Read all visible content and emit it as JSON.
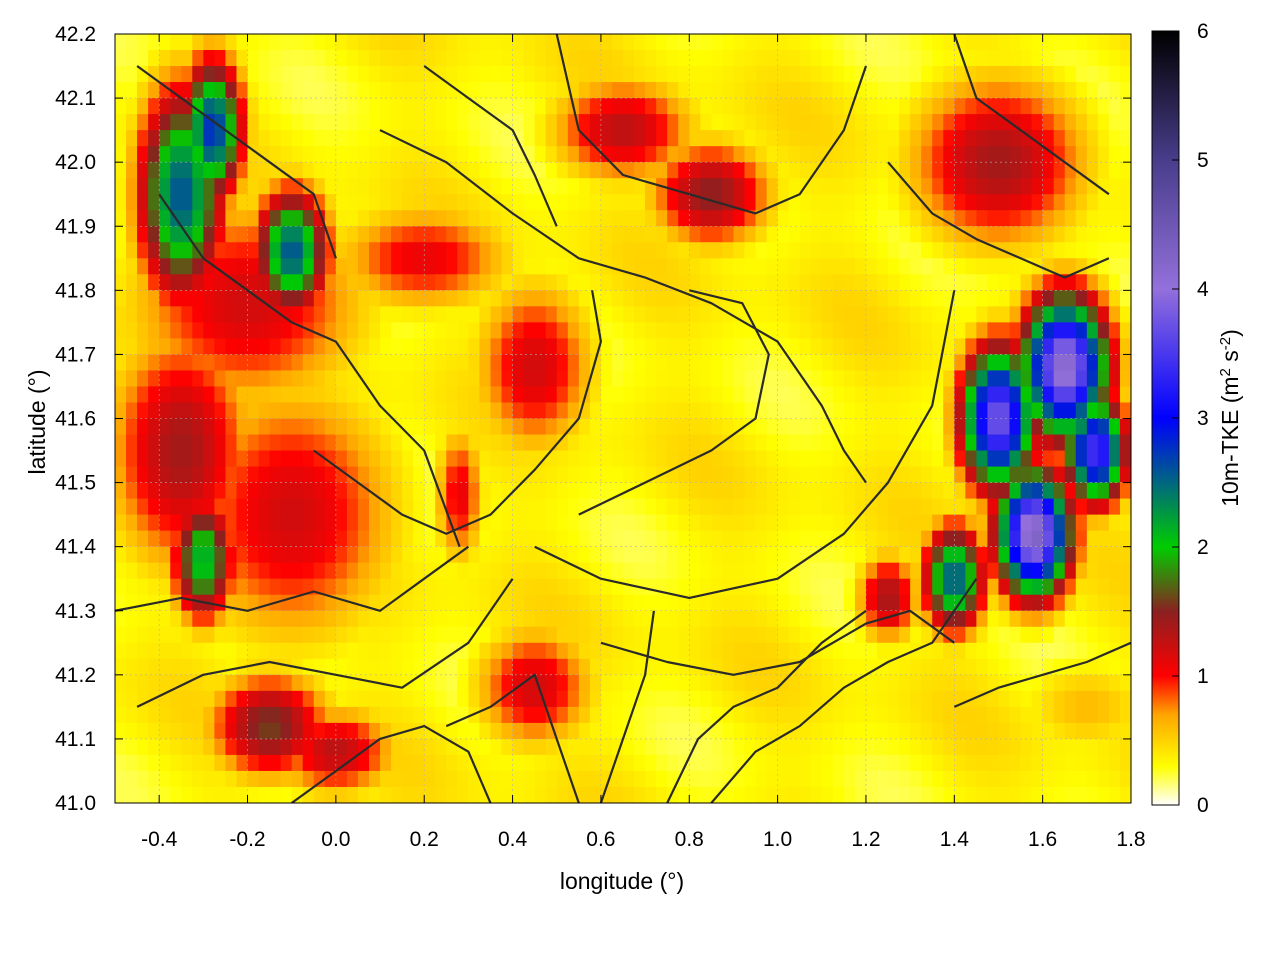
{
  "chart_data": {
    "type": "heatmap",
    "title": "",
    "xlabel": "longitude (°)",
    "ylabel": "latitude (°)",
    "colorbar_label": "10m-TKE (m² s⁻²)",
    "colorbar_label_parts": {
      "base": "10m-TKE (m",
      "sup1": "2",
      "mid": " s",
      "sup2": "-2",
      "end": ")"
    },
    "xlim": [
      -0.5,
      1.8
    ],
    "ylim": [
      41.0,
      42.2
    ],
    "clim": [
      0,
      6
    ],
    "xticks": [
      "-0.4",
      "-0.2",
      "0.0",
      "0.2",
      "0.4",
      "0.6",
      "0.8",
      "1.0",
      "1.2",
      "1.4",
      "1.6",
      "1.8"
    ],
    "xtick_values": [
      -0.4,
      -0.2,
      0.0,
      0.2,
      0.4,
      0.6,
      0.8,
      1.0,
      1.2,
      1.4,
      1.6,
      1.8
    ],
    "yticks": [
      "41.0",
      "41.1",
      "41.2",
      "41.3",
      "41.4",
      "41.5",
      "41.6",
      "41.7",
      "41.8",
      "41.9",
      "42.0",
      "42.1",
      "42.2"
    ],
    "ytick_values": [
      41.0,
      41.1,
      41.2,
      41.3,
      41.4,
      41.5,
      41.6,
      41.7,
      41.8,
      41.9,
      42.0,
      42.1,
      42.2
    ],
    "cbticks": [
      "0",
      "1",
      "2",
      "3",
      "4",
      "5",
      "6"
    ],
    "cbtick_values": [
      0,
      1,
      2,
      3,
      4,
      5,
      6
    ],
    "grid": true,
    "colormap": [
      {
        "v": 0.0,
        "color": "#ffffff"
      },
      {
        "v": 0.3,
        "color": "#ffff00"
      },
      {
        "v": 0.7,
        "color": "#ffa500"
      },
      {
        "v": 1.0,
        "color": "#ff0000"
      },
      {
        "v": 1.5,
        "color": "#8b2020"
      },
      {
        "v": 2.0,
        "color": "#00cc00"
      },
      {
        "v": 3.0,
        "color": "#0000ff"
      },
      {
        "v": 4.0,
        "color": "#9370db"
      },
      {
        "v": 5.0,
        "color": "#483d8b"
      },
      {
        "v": 6.0,
        "color": "#000000"
      }
    ],
    "field_blobs": [
      {
        "lon": -0.35,
        "lat": 41.95,
        "v": 2.6,
        "sx": 0.07,
        "sy": 0.12
      },
      {
        "lon": -0.28,
        "lat": 42.05,
        "v": 2.8,
        "sx": 0.05,
        "sy": 0.08
      },
      {
        "lon": -0.1,
        "lat": 41.86,
        "v": 2.6,
        "sx": 0.06,
        "sy": 0.07
      },
      {
        "lon": -0.2,
        "lat": 41.78,
        "v": 1.2,
        "sx": 0.2,
        "sy": 0.12
      },
      {
        "lon": -0.35,
        "lat": 41.55,
        "v": 1.4,
        "sx": 0.12,
        "sy": 0.14
      },
      {
        "lon": -0.3,
        "lat": 41.38,
        "v": 2.2,
        "sx": 0.05,
        "sy": 0.07
      },
      {
        "lon": -0.1,
        "lat": 41.45,
        "v": 1.2,
        "sx": 0.18,
        "sy": 0.15
      },
      {
        "lon": 0.45,
        "lat": 41.68,
        "v": 1.2,
        "sx": 0.1,
        "sy": 0.1
      },
      {
        "lon": 0.2,
        "lat": 41.85,
        "v": 1.1,
        "sx": 0.15,
        "sy": 0.06
      },
      {
        "lon": 0.28,
        "lat": 41.48,
        "v": 1.1,
        "sx": 0.04,
        "sy": 0.08
      },
      {
        "lon": 0.45,
        "lat": 41.18,
        "v": 1.2,
        "sx": 0.1,
        "sy": 0.07
      },
      {
        "lon": -0.15,
        "lat": 41.12,
        "v": 1.6,
        "sx": 0.1,
        "sy": 0.06
      },
      {
        "lon": 0.0,
        "lat": 41.08,
        "v": 1.3,
        "sx": 0.1,
        "sy": 0.05
      },
      {
        "lon": 0.65,
        "lat": 42.05,
        "v": 1.3,
        "sx": 0.12,
        "sy": 0.06
      },
      {
        "lon": 0.85,
        "lat": 41.95,
        "v": 1.5,
        "sx": 0.1,
        "sy": 0.06
      },
      {
        "lon": 1.5,
        "lat": 42.0,
        "v": 1.4,
        "sx": 0.15,
        "sy": 0.1
      },
      {
        "lon": 1.65,
        "lat": 41.68,
        "v": 4.2,
        "sx": 0.07,
        "sy": 0.08
      },
      {
        "lon": 1.5,
        "lat": 41.6,
        "v": 3.8,
        "sx": 0.06,
        "sy": 0.08
      },
      {
        "lon": 1.58,
        "lat": 41.42,
        "v": 4.3,
        "sx": 0.06,
        "sy": 0.07
      },
      {
        "lon": 1.72,
        "lat": 41.55,
        "v": 3.5,
        "sx": 0.05,
        "sy": 0.06
      },
      {
        "lon": 1.4,
        "lat": 41.35,
        "v": 2.6,
        "sx": 0.05,
        "sy": 0.06
      },
      {
        "lon": 1.25,
        "lat": 41.32,
        "v": 1.4,
        "sx": 0.05,
        "sy": 0.05
      },
      {
        "lon": 1.7,
        "lat": 41.15,
        "v": 0.6,
        "sx": 0.12,
        "sy": 0.06
      }
    ],
    "contours": [
      [
        [
          -0.5,
          41.3
        ],
        [
          -0.35,
          41.32
        ],
        [
          -0.2,
          41.3
        ],
        [
          -0.05,
          41.33
        ],
        [
          0.1,
          41.3
        ],
        [
          0.2,
          41.35
        ],
        [
          0.3,
          41.4
        ]
      ],
      [
        [
          -0.45,
          41.15
        ],
        [
          -0.3,
          41.2
        ],
        [
          -0.15,
          41.22
        ],
        [
          0.0,
          41.2
        ],
        [
          0.15,
          41.18
        ],
        [
          0.3,
          41.25
        ],
        [
          0.4,
          41.35
        ]
      ],
      [
        [
          -0.4,
          41.95
        ],
        [
          -0.3,
          41.85
        ],
        [
          -0.2,
          41.8
        ],
        [
          -0.1,
          41.75
        ],
        [
          0.0,
          41.72
        ],
        [
          0.1,
          41.62
        ],
        [
          0.2,
          41.55
        ],
        [
          0.28,
          41.4
        ]
      ],
      [
        [
          -0.05,
          41.55
        ],
        [
          0.05,
          41.5
        ],
        [
          0.15,
          41.45
        ],
        [
          0.25,
          41.42
        ],
        [
          0.35,
          41.45
        ],
        [
          0.45,
          41.52
        ],
        [
          0.55,
          41.6
        ],
        [
          0.6,
          41.72
        ],
        [
          0.58,
          41.8
        ]
      ],
      [
        [
          0.1,
          42.05
        ],
        [
          0.25,
          42.0
        ],
        [
          0.4,
          41.92
        ],
        [
          0.55,
          41.85
        ],
        [
          0.7,
          41.82
        ],
        [
          0.85,
          41.78
        ],
        [
          1.0,
          41.72
        ],
        [
          1.1,
          41.62
        ],
        [
          1.15,
          41.55
        ],
        [
          1.2,
          41.5
        ]
      ],
      [
        [
          0.55,
          41.45
        ],
        [
          0.7,
          41.5
        ],
        [
          0.85,
          41.55
        ],
        [
          0.95,
          41.6
        ],
        [
          0.98,
          41.7
        ],
        [
          0.92,
          41.78
        ],
        [
          0.8,
          41.8
        ]
      ],
      [
        [
          0.45,
          41.4
        ],
        [
          0.6,
          41.35
        ],
        [
          0.8,
          41.32
        ],
        [
          1.0,
          41.35
        ],
        [
          1.15,
          41.42
        ],
        [
          1.25,
          41.5
        ],
        [
          1.35,
          41.62
        ],
        [
          1.4,
          41.8
        ]
      ],
      [
        [
          0.6,
          41.25
        ],
        [
          0.75,
          41.22
        ],
        [
          0.9,
          41.2
        ],
        [
          1.05,
          41.22
        ],
        [
          1.2,
          41.28
        ],
        [
          1.3,
          41.3
        ],
        [
          1.4,
          41.25
        ]
      ],
      [
        [
          0.75,
          41.0
        ],
        [
          0.82,
          41.1
        ],
        [
          0.9,
          41.15
        ],
        [
          1.0,
          41.18
        ],
        [
          1.1,
          41.25
        ],
        [
          1.2,
          41.3
        ]
      ],
      [
        [
          0.85,
          41.0
        ],
        [
          0.95,
          41.08
        ],
        [
          1.05,
          41.12
        ],
        [
          1.15,
          41.18
        ],
        [
          1.25,
          41.22
        ],
        [
          1.35,
          41.25
        ],
        [
          1.45,
          41.35
        ]
      ],
      [
        [
          1.4,
          41.15
        ],
        [
          1.5,
          41.18
        ],
        [
          1.6,
          41.2
        ],
        [
          1.7,
          41.22
        ],
        [
          1.8,
          41.25
        ]
      ],
      [
        [
          0.5,
          42.2
        ],
        [
          0.55,
          42.05
        ],
        [
          0.65,
          41.98
        ],
        [
          0.8,
          41.95
        ],
        [
          0.95,
          41.92
        ],
        [
          1.05,
          41.95
        ],
        [
          1.15,
          42.05
        ],
        [
          1.2,
          42.15
        ]
      ],
      [
        [
          1.25,
          42.0
        ],
        [
          1.35,
          41.92
        ],
        [
          1.45,
          41.88
        ],
        [
          1.55,
          41.85
        ],
        [
          1.65,
          41.82
        ],
        [
          1.75,
          41.85
        ]
      ],
      [
        [
          0.25,
          41.12
        ],
        [
          0.35,
          41.15
        ],
        [
          0.45,
          41.2
        ],
        [
          0.5,
          41.1
        ],
        [
          0.55,
          41.0
        ]
      ],
      [
        [
          0.6,
          41.0
        ],
        [
          0.65,
          41.1
        ],
        [
          0.7,
          41.2
        ],
        [
          0.72,
          41.3
        ]
      ],
      [
        [
          -0.1,
          41.0
        ],
        [
          0.0,
          41.05
        ],
        [
          0.1,
          41.1
        ],
        [
          0.2,
          41.12
        ],
        [
          0.3,
          41.08
        ],
        [
          0.35,
          41.0
        ]
      ],
      [
        [
          -0.45,
          42.15
        ],
        [
          -0.35,
          42.1
        ],
        [
          -0.25,
          42.05
        ],
        [
          -0.15,
          42.0
        ],
        [
          -0.05,
          41.95
        ],
        [
          0.0,
          41.85
        ]
      ],
      [
        [
          0.2,
          42.15
        ],
        [
          0.3,
          42.1
        ],
        [
          0.4,
          42.05
        ],
        [
          0.45,
          41.98
        ],
        [
          0.5,
          41.9
        ]
      ],
      [
        [
          1.4,
          42.2
        ],
        [
          1.45,
          42.1
        ],
        [
          1.55,
          42.05
        ],
        [
          1.65,
          42.0
        ],
        [
          1.75,
          41.95
        ]
      ]
    ]
  }
}
